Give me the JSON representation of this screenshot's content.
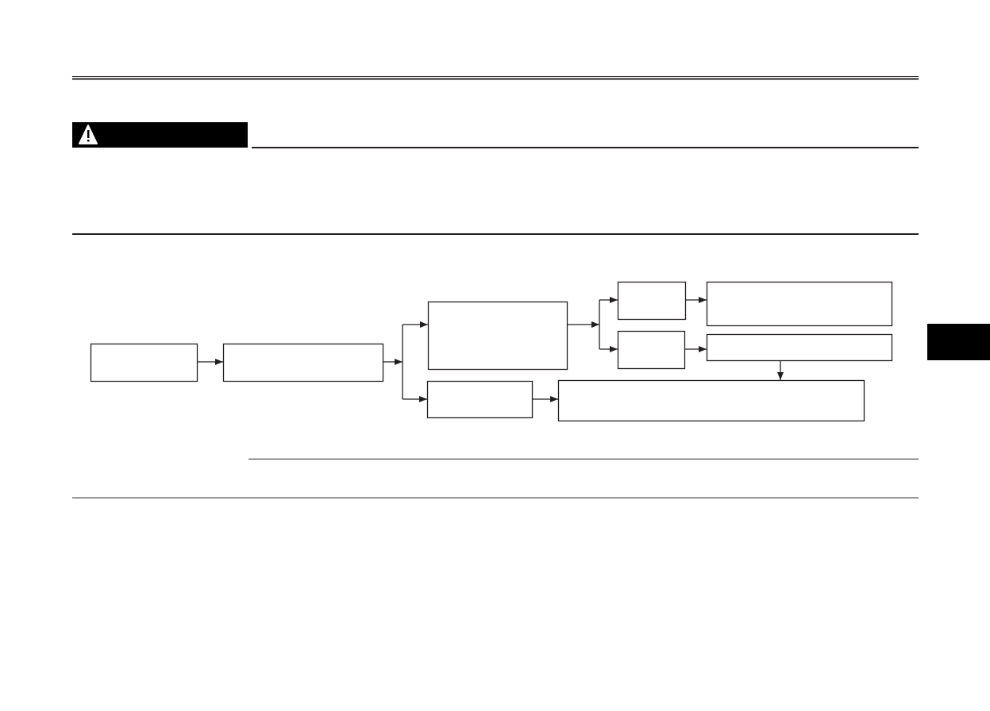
{
  "colors": {
    "ink": "#231f20",
    "page": "#ffffff"
  },
  "warning_banner": {
    "icon": "warning-triangle-icon"
  },
  "flowchart": {
    "boxes": [
      "box-1",
      "box-2",
      "box-3",
      "box-4",
      "box-5",
      "box-6",
      "box-7",
      "box-8",
      "box-9"
    ]
  },
  "side_tab": {
    "icon": "chapter-tab"
  }
}
